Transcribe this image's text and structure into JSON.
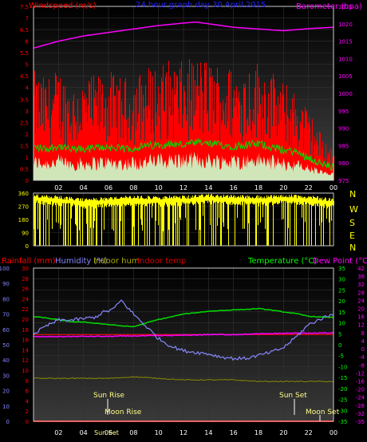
{
  "header": {
    "windspeed_label": "Windspeed (m/s)",
    "graph_title": "24 hour graph day  30 April 2015",
    "barometer_label": "Barometer (hpa)",
    "rainfall_label": "Rainfall (mm)",
    "humidity_label": "Humidity (%)",
    "indoor_hum_label": "Indoor hum",
    "indoor_temp_label": "Indoor temp",
    "temperature_label": "Temperature (°C)",
    "dewpoint_label": "Dew Point (°C)"
  },
  "annotations": {
    "sun_rise": "Sun Rise",
    "moon_rise": "Moon Rise",
    "sun_set": "Sun Set",
    "moon_set": "Moon Set",
    "sun_set_axis": "Sun Set"
  },
  "compass": [
    "N",
    "W",
    "S",
    "E",
    "N"
  ],
  "colors": {
    "wind": "#ff0000",
    "gust_area": "#ccffcc",
    "avg_wind": "#00dd00",
    "barometer": "#ff00ff",
    "direction": "#ffff00",
    "humidity": "#8888ff",
    "temperature": "#00dd00",
    "dewpoint": "#ff00ff",
    "indoor_temp": "#ff0000",
    "indoor_hum": "#888800",
    "rain": "#ff0000"
  },
  "chart_data": [
    {
      "type": "area",
      "title": "24 hour graph day  30 April 2015",
      "ylabel": "Windspeed (m/s)",
      "y2label": "Barometer (hpa)",
      "ylim": [
        0,
        7.5
      ],
      "y2lim": [
        975,
        1025
      ],
      "yticks": [
        "0",
        "0.5",
        "1",
        "1.5",
        "2",
        "2.5",
        "3",
        "3.5",
        "4",
        "4.5",
        "5",
        "5.5",
        "6",
        "6.5",
        "7",
        "7.5"
      ],
      "y2ticks": [
        "975",
        "980",
        "985",
        "990",
        "995",
        "1000",
        "1005",
        "1010",
        "1015",
        "1020",
        "1025"
      ],
      "xticks": [
        "02",
        "04",
        "06",
        "08",
        "10",
        "12",
        "14",
        "16",
        "18",
        "20",
        "22",
        "00"
      ],
      "grid": true,
      "series": [
        {
          "name": "Windspeed (m/s)",
          "x": [
            0,
            1,
            2,
            3,
            4,
            5,
            6,
            7,
            8,
            9,
            10,
            11,
            12,
            13,
            14,
            15,
            16,
            17,
            18,
            19,
            20,
            21,
            22,
            23,
            24
          ],
          "values": [
            2.8,
            2.6,
            2.9,
            2.5,
            2.6,
            2.7,
            2.8,
            2.6,
            2.7,
            2.9,
            3.0,
            3.1,
            3.0,
            3.2,
            3.1,
            3.0,
            2.9,
            3.0,
            3.1,
            2.8,
            2.5,
            2.3,
            1.8,
            1.2,
            0.8
          ]
        },
        {
          "name": "Barometer (hpa)",
          "x": [
            0,
            2,
            4,
            6,
            8,
            10,
            12,
            13,
            14,
            16,
            18,
            20,
            22,
            24
          ],
          "values": [
            1013,
            1015,
            1016.5,
            1017.5,
            1018.5,
            1019.5,
            1020.2,
            1020.5,
            1020,
            1019,
            1018.5,
            1018,
            1018.6,
            1019
          ]
        }
      ]
    },
    {
      "type": "scatter",
      "title": "",
      "ylim": [
        0,
        360
      ],
      "yticks": [
        "0",
        "90",
        "180",
        "270",
        "360"
      ],
      "xticks": [
        "02",
        "04",
        "06",
        "08",
        "10",
        "12",
        "14",
        "16",
        "18",
        "20",
        "22",
        "00"
      ],
      "grid": true,
      "series": [
        {
          "name": "",
          "x": [
            0,
            2,
            4,
            6,
            8,
            10,
            12,
            14,
            16,
            18,
            20,
            22,
            24
          ],
          "values": [
            330,
            320,
            300,
            310,
            320,
            315,
            320,
            330,
            325,
            320,
            330,
            320,
            300
          ]
        }
      ]
    },
    {
      "type": "line",
      "title": "",
      "ylim": [
        0,
        100
      ],
      "yticks": [
        "0",
        "10",
        "20",
        "30",
        "40",
        "50",
        "60",
        "70",
        "80",
        "90",
        "100"
      ],
      "rain_ticks": [
        "0",
        "2",
        "4",
        "6",
        "8",
        "10",
        "12",
        "14",
        "16",
        "18",
        "20",
        "22",
        "24",
        "26",
        "28",
        "30"
      ],
      "temp_ticks": [
        "-35",
        "-30",
        "-25",
        "-20",
        "-15",
        "-10",
        "-5",
        "0",
        "5",
        "10",
        "15",
        "20",
        "25",
        "30",
        "35"
      ],
      "dew_ticks": [
        "-35",
        "-32",
        "-28",
        "-24",
        "-20",
        "-16",
        "-12",
        "-8",
        "-4",
        "0",
        "4",
        "8",
        "12",
        "16",
        "20",
        "24",
        "28",
        "32",
        "36",
        "42"
      ],
      "xticks": [
        "02",
        "04",
        "06",
        "08",
        "10",
        "12",
        "14",
        "16",
        "18",
        "20",
        "22",
        "00"
      ],
      "grid": true,
      "series": [
        {
          "name": "Humidity (%)",
          "x": [
            0,
            1,
            2,
            3,
            4,
            5,
            5.5,
            6,
            6.5,
            7,
            8,
            9,
            10,
            11,
            12,
            13,
            14,
            15,
            16,
            17,
            18,
            19,
            20,
            21,
            22,
            23,
            24
          ],
          "values": [
            57,
            62,
            66,
            66,
            67,
            68,
            71,
            72,
            74,
            79,
            70,
            62,
            54,
            49,
            46,
            45,
            44,
            42,
            41,
            41,
            43,
            45,
            48,
            55,
            63,
            67,
            70
          ]
        },
        {
          "name": "Temperature (°C)",
          "x": [
            0,
            1,
            2,
            3,
            4,
            5,
            6,
            7,
            8,
            9,
            10,
            11,
            12,
            13,
            14,
            15,
            16,
            17,
            18,
            19,
            20,
            21,
            22,
            23,
            24
          ],
          "values": [
            12.8,
            12.2,
            11.4,
            10.5,
            10.3,
            9.8,
            9.2,
            8.6,
            8.2,
            9.9,
            11.5,
            12.7,
            14.0,
            14.6,
            15.3,
            15.6,
            15.9,
            16.1,
            16.5,
            15.8,
            15.0,
            14.2,
            13.0,
            12.6,
            12.5
          ]
        },
        {
          "name": "Dew Point (°C)",
          "x": [
            0,
            2,
            4,
            6,
            8,
            10,
            12,
            14,
            16,
            18,
            20,
            22,
            24
          ],
          "values": [
            3.6,
            3.7,
            3.8,
            3.8,
            4.0,
            4.1,
            4.3,
            4.6,
            4.6,
            4.9,
            5.2,
            5.3,
            5.3
          ]
        },
        {
          "name": "Indoor temp",
          "x": [
            0,
            24
          ],
          "values": [
            4.6,
            4.6
          ]
        },
        {
          "name": "Indoor hum",
          "x": [
            0,
            4,
            6,
            8,
            10,
            12,
            14,
            16,
            18,
            20,
            22,
            24
          ],
          "values": [
            28,
            28,
            28,
            29,
            28,
            27,
            27,
            27,
            26,
            26,
            26,
            26
          ]
        },
        {
          "name": "Rainfall (mm)",
          "x": [
            0,
            24
          ],
          "values": [
            0,
            0
          ]
        }
      ]
    }
  ]
}
